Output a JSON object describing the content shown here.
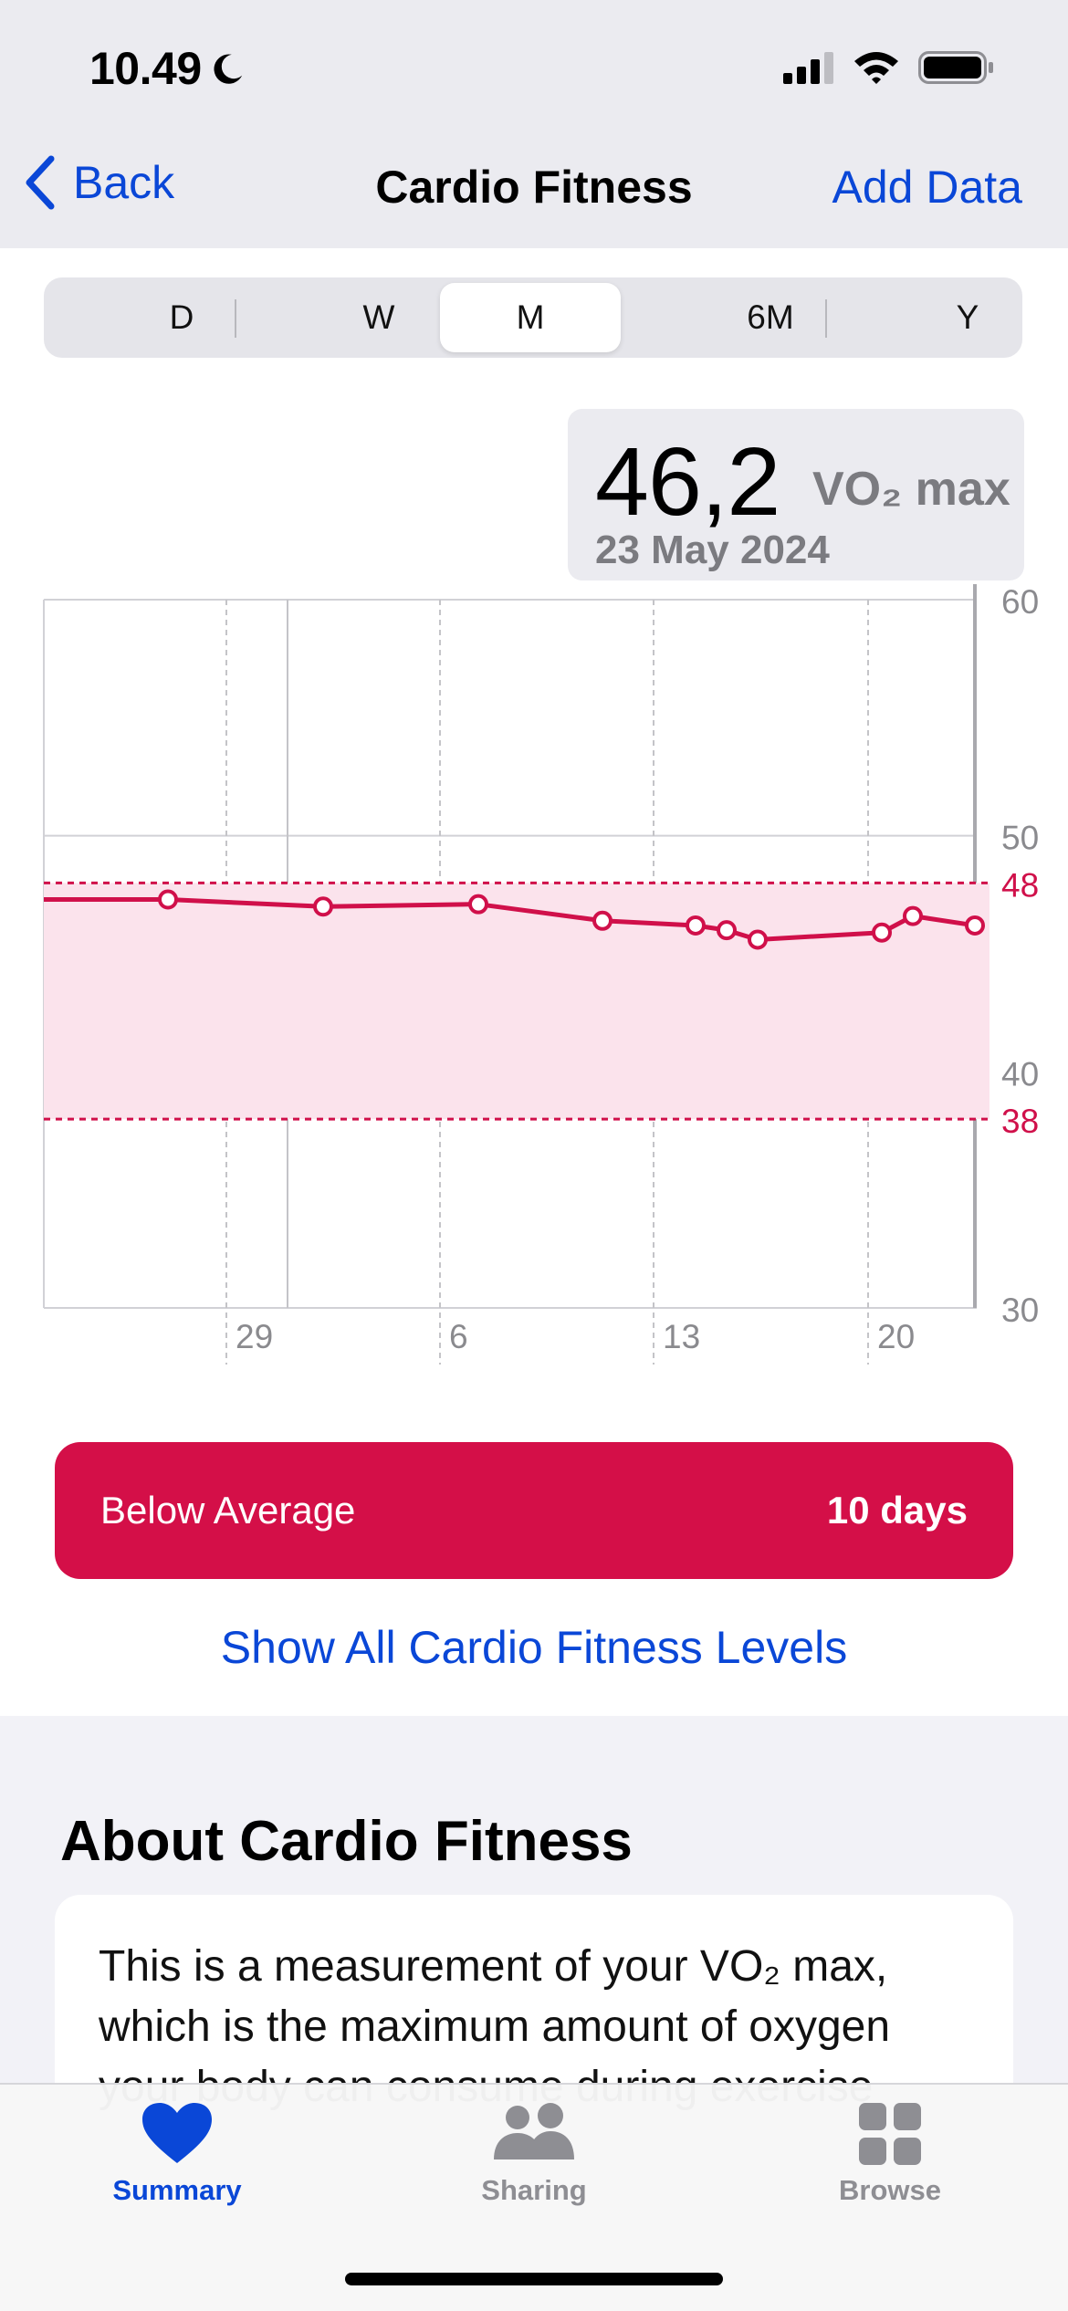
{
  "status": {
    "time": "10.49"
  },
  "nav": {
    "back_label": "Back",
    "title": "Cardio Fitness",
    "add_label": "Add Data"
  },
  "segments": [
    "D",
    "W",
    "M",
    "6M",
    "Y"
  ],
  "selected_segment": "M",
  "callout": {
    "value": "46,2",
    "unit": "VO₂ max",
    "date": "23 May 2024"
  },
  "chart_data": {
    "type": "line",
    "x_ticks": [
      "29",
      "6",
      "13",
      "20"
    ],
    "y_ticks": [
      "30",
      "40",
      "50",
      "60"
    ],
    "ylim": [
      30,
      60
    ],
    "band": {
      "low": 38,
      "high": 48,
      "low_label": "38",
      "high_label": "48"
    },
    "points": [
      {
        "x": 0,
        "y": 47.3
      },
      {
        "x": 4,
        "y": 47.3
      },
      {
        "x": 9,
        "y": 47.0
      },
      {
        "x": 14,
        "y": 47.1
      },
      {
        "x": 18,
        "y": 46.4
      },
      {
        "x": 21,
        "y": 46.2
      },
      {
        "x": 22,
        "y": 46.0
      },
      {
        "x": 23,
        "y": 45.6
      },
      {
        "x": 27,
        "y": 45.9
      },
      {
        "x": 28,
        "y": 46.6
      },
      {
        "x": 30,
        "y": 46.2
      }
    ],
    "colors": {
      "line": "#d0104a",
      "band": "#fbe3ec"
    }
  },
  "level": {
    "label": "Below Average",
    "value": "10 days",
    "color": "#d40f48"
  },
  "show_all_label": "Show All Cardio Fitness Levels",
  "about": {
    "title": "About Cardio Fitness",
    "body": "This is a measurement of your VO₂ max, which is the maximum amount of oxygen your body can consume during exercise"
  },
  "tabs": [
    {
      "label": "Summary",
      "icon": "heart-icon",
      "color": "#0a47d7"
    },
    {
      "label": "Sharing",
      "icon": "people-icon",
      "color": "#8e8e93"
    },
    {
      "label": "Browse",
      "icon": "grid-icon",
      "color": "#8e8e93"
    }
  ]
}
